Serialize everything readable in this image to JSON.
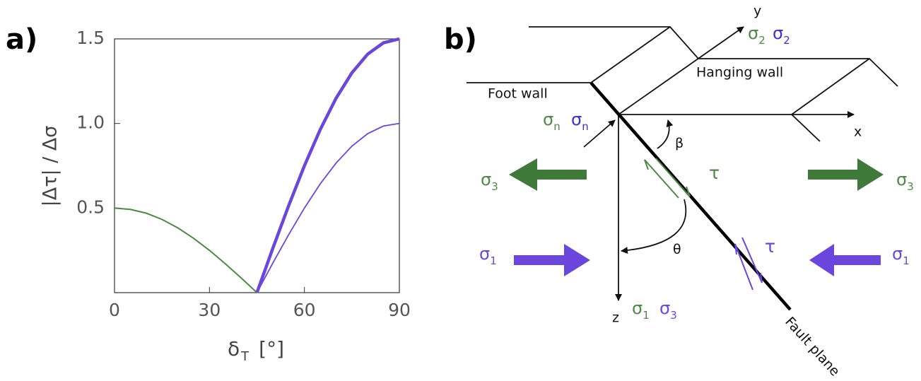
{
  "chart_data": {
    "type": "line",
    "panel_label": "a)",
    "ylabel": "|Δτ| / Δσ",
    "xlabel": {
      "symbol": "δ",
      "subscript": "T",
      "unit": "[°]"
    },
    "x": [
      0,
      5,
      10,
      15,
      20,
      25,
      30,
      35,
      40,
      45,
      50,
      55,
      60,
      65,
      70,
      75,
      80,
      85,
      90
    ],
    "series": [
      {
        "color": "#4d8a43",
        "width": 2,
        "values": [
          0.5,
          0.492,
          0.47,
          0.433,
          0.383,
          0.321,
          0.25,
          0.171,
          0.087,
          0,
          null,
          null,
          null,
          null,
          null,
          null,
          null,
          null,
          null
        ]
      },
      {
        "color": "#6a46dc",
        "width": 1.8,
        "values": [
          null,
          null,
          null,
          null,
          null,
          null,
          null,
          null,
          null,
          0,
          0.174,
          0.342,
          0.5,
          0.643,
          0.766,
          0.866,
          0.94,
          0.985,
          1
        ]
      },
      {
        "color": "#6a46dc",
        "width": 4.5,
        "values": [
          null,
          null,
          null,
          null,
          null,
          null,
          null,
          null,
          null,
          0,
          0.261,
          0.513,
          0.75,
          0.964,
          1.149,
          1.299,
          1.41,
          1.477,
          1.5
        ]
      }
    ],
    "xlim": [
      0,
      90
    ],
    "xticks": [
      0,
      30,
      60,
      90
    ],
    "ylim": [
      0,
      1.5
    ],
    "yticks": [
      0.5,
      {
        "value": 1,
        "label": "1.0"
      },
      1.5
    ]
  },
  "diagram": {
    "panel_label": "b)",
    "axes": {
      "x": "x",
      "y": "y",
      "z": "z"
    },
    "regions": {
      "hanging_wall": "Hanging wall",
      "foot_wall": "Foot wall"
    },
    "fault": "Fault plane",
    "angles": {
      "beta": "β",
      "theta": "θ"
    },
    "shear": {
      "green": "τ",
      "purple": "τ"
    },
    "y_labels": [
      {
        "symbol": "σ",
        "sub": "2"
      },
      {
        "symbol": "σ",
        "sub": "2"
      }
    ],
    "n_labels": [
      {
        "symbol": "σ",
        "sub": "n"
      },
      {
        "symbol": "σ",
        "sub": "n"
      }
    ],
    "z_labels": [
      {
        "symbol": "σ",
        "sub": "1"
      },
      {
        "symbol": "σ",
        "sub": "3"
      }
    ],
    "left": [
      {
        "symbol": "σ",
        "sub": "3"
      },
      {
        "symbol": "σ",
        "sub": "1"
      }
    ],
    "right": [
      {
        "symbol": "σ",
        "sub": "3"
      },
      {
        "symbol": "σ",
        "sub": "1"
      }
    ]
  }
}
